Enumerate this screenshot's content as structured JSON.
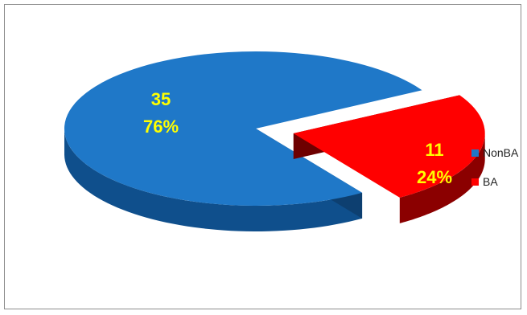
{
  "chart_data": {
    "type": "pie",
    "style": "3d-exploded",
    "slices": [
      {
        "name": "NonBA",
        "value": 35,
        "percent": "76%",
        "color": "#1f78c8",
        "side_color": "#0f4f8c",
        "label_color": "#ffff00"
      },
      {
        "name": "BA",
        "value": 11,
        "percent": "24%",
        "color": "#ff0000",
        "side_color": "#8b0000",
        "label_color": "#ffff00"
      }
    ],
    "legend_position": "right"
  }
}
